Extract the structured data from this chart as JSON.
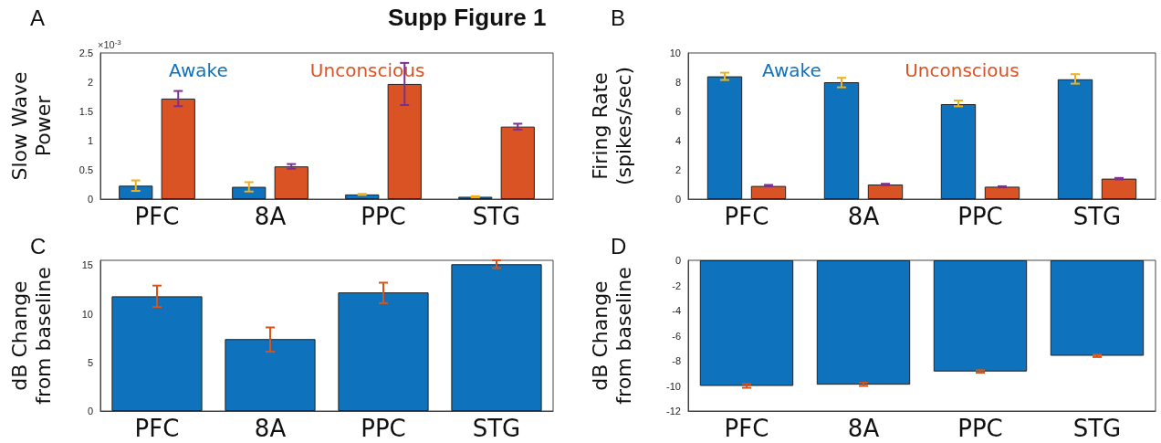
{
  "chart_data": [
    {
      "type": "bar",
      "title": "A",
      "ylabel": "Slow Wave Power",
      "annotations": [
        "Supp Figure 1",
        "×10$^{-3}$"
      ],
      "categories": [
        "PFC",
        "8A",
        "PPC",
        "STG"
      ],
      "legend": "top",
      "grid": false,
      "ylim": [
        0,
        2.5
      ],
      "yticks": [
        0,
        0.5,
        1,
        1.5,
        2,
        2.5
      ],
      "series": [
        {
          "name": "Awake",
          "color": "#0e72bd",
          "values": [
            0.23,
            0.21,
            0.08,
            0.04
          ],
          "errors": [
            [
              0.14,
              0.32
            ],
            [
              0.13,
              0.29
            ],
            [
              0.07,
              0.09
            ],
            [
              0.03,
              0.05
            ]
          ]
        },
        {
          "name": "Unconscious",
          "color": "#d95325",
          "values": [
            1.72,
            0.56,
            1.97,
            1.24
          ],
          "errors": [
            [
              1.59,
              1.85
            ],
            [
              0.52,
              0.6
            ],
            [
              1.61,
              2.33
            ],
            [
              1.19,
              1.29
            ]
          ]
        }
      ]
    },
    {
      "type": "bar",
      "title": "B",
      "ylabel": "Firing Rate (spikes/sec)",
      "categories": [
        "PFC",
        "8A",
        "PPC",
        "STG"
      ],
      "legend": "top",
      "grid": false,
      "ylim": [
        0,
        10
      ],
      "yticks": [
        0,
        2,
        4,
        6,
        8,
        10
      ],
      "series": [
        {
          "name": "Awake",
          "color": "#0e72bd",
          "values": [
            8.4,
            8.0,
            6.5,
            8.2
          ],
          "errors": [
            [
              8.15,
              8.65
            ],
            [
              7.65,
              8.3
            ],
            [
              6.35,
              6.75
            ],
            [
              7.9,
              8.55
            ]
          ]
        },
        {
          "name": "Unconscious",
          "color": "#d95325",
          "values": [
            0.9,
            1.0,
            0.85,
            1.4
          ],
          "errors": [
            [
              0.87,
              0.97
            ],
            [
              0.95,
              1.05
            ],
            [
              0.8,
              0.88
            ],
            [
              1.35,
              1.45
            ]
          ]
        }
      ]
    },
    {
      "type": "bar",
      "title": "C",
      "ylabel": "dB Change from baseline",
      "categories": [
        "PFC",
        "8A",
        "PPC",
        "STG"
      ],
      "grid": false,
      "ylim": [
        0,
        15.5
      ],
      "yticks": [
        0,
        5,
        10,
        15
      ],
      "series": [
        {
          "color": "#0e72bd",
          "values": [
            11.8,
            7.4,
            12.2,
            15.1
          ],
          "errors": [
            [
              10.7,
              12.9
            ],
            [
              6.1,
              8.6
            ],
            [
              11.1,
              13.2
            ],
            [
              14.7,
              15.5
            ]
          ]
        }
      ]
    },
    {
      "type": "bar",
      "title": "D",
      "ylabel": "dB Change from baseline",
      "categories": [
        "PFC",
        "8A",
        "PPC",
        "STG"
      ],
      "grid": false,
      "ylim": [
        -12,
        0
      ],
      "yticks": [
        -12,
        -10,
        -8,
        -6,
        -4,
        -2,
        0
      ],
      "series": [
        {
          "color": "#0e72bd",
          "values": [
            -10.0,
            -9.9,
            -8.85,
            -7.6
          ],
          "errors": [
            [
              -10.15,
              -9.85
            ],
            [
              -10.0,
              -9.75
            ],
            [
              -8.95,
              -8.75
            ],
            [
              -7.7,
              -7.5
            ]
          ]
        }
      ]
    }
  ]
}
